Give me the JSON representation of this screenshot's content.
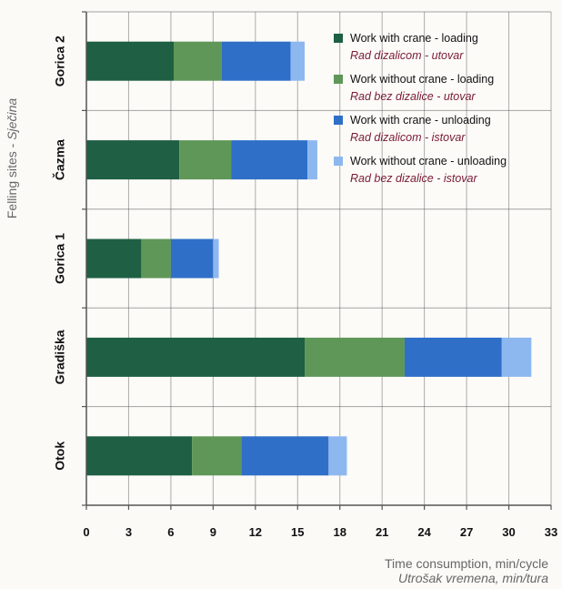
{
  "chart_data": {
    "type": "bar",
    "orientation": "horizontal",
    "stacked": true,
    "categories": [
      "Gorica 2",
      "Čazma",
      "Gorica 1",
      "Gradiška",
      "Otok"
    ],
    "series": [
      {
        "name": "Work with crane - loading",
        "subtitle": "Rad dizalicom - utovar",
        "color": "#1f5f43",
        "values": [
          6.2,
          6.6,
          3.9,
          15.5,
          7.5
        ]
      },
      {
        "name": "Work without crane - loading",
        "subtitle": "Rad bez dizalice - utovar",
        "color": "#5f9758",
        "values": [
          3.4,
          3.7,
          2.1,
          7.1,
          3.5
        ]
      },
      {
        "name": "Work with crane - unloading",
        "subtitle": "Rad dizalicom - istovar",
        "color": "#2f6fc8",
        "values": [
          4.9,
          5.4,
          3.0,
          6.9,
          6.2
        ]
      },
      {
        "name": "Work without crane - unloading",
        "subtitle": "Rad bez dizalice - istovar",
        "color": "#8db8ef",
        "values": [
          1.0,
          0.7,
          0.4,
          2.1,
          1.3
        ]
      }
    ],
    "xlim": [
      0,
      33
    ],
    "xticks": [
      "0",
      "3",
      "6",
      "9",
      "12",
      "15",
      "18",
      "21",
      "24",
      "27",
      "30",
      "33"
    ],
    "xlabel": "Time consumption, min/cycle",
    "xlabel_subtitle": "Utrošak vremena, min/tura",
    "ylabel_prefix": "Felling sites - ",
    "ylabel_italic": "Sječina",
    "grid": true,
    "legend_position": "top-right"
  }
}
